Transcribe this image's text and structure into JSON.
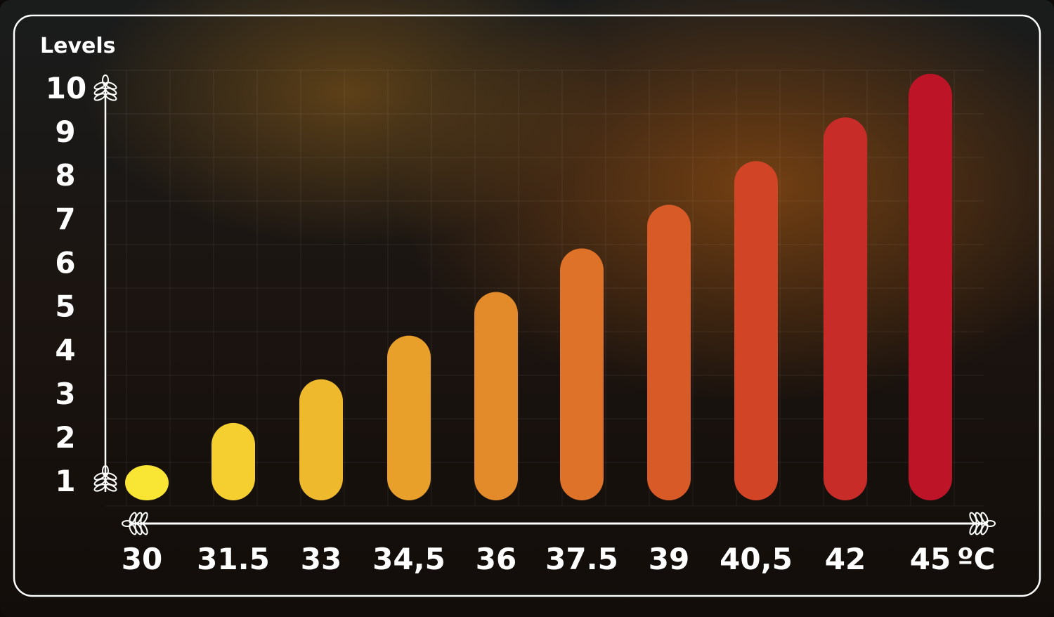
{
  "chart_data": {
    "type": "bar",
    "ylabel": "Levels",
    "x_unit": "ºC",
    "categories": [
      "30",
      "31.5",
      "33",
      "34,5",
      "36",
      "37.5",
      "39",
      "40,5",
      "42",
      "45"
    ],
    "values": [
      1,
      2,
      3,
      4,
      5,
      6,
      7,
      8,
      9,
      10
    ],
    "y_ticks": [
      "1",
      "2",
      "3",
      "4",
      "5",
      "6",
      "7",
      "8",
      "9",
      "10"
    ],
    "ylim": [
      1,
      10
    ],
    "grid": true,
    "colors": [
      "#f9e634",
      "#f5cf30",
      "#efb92e",
      "#e8a02b",
      "#e38a2a",
      "#de7228",
      "#d85a27",
      "#d24426",
      "#c82c29",
      "#bd1428"
    ]
  }
}
